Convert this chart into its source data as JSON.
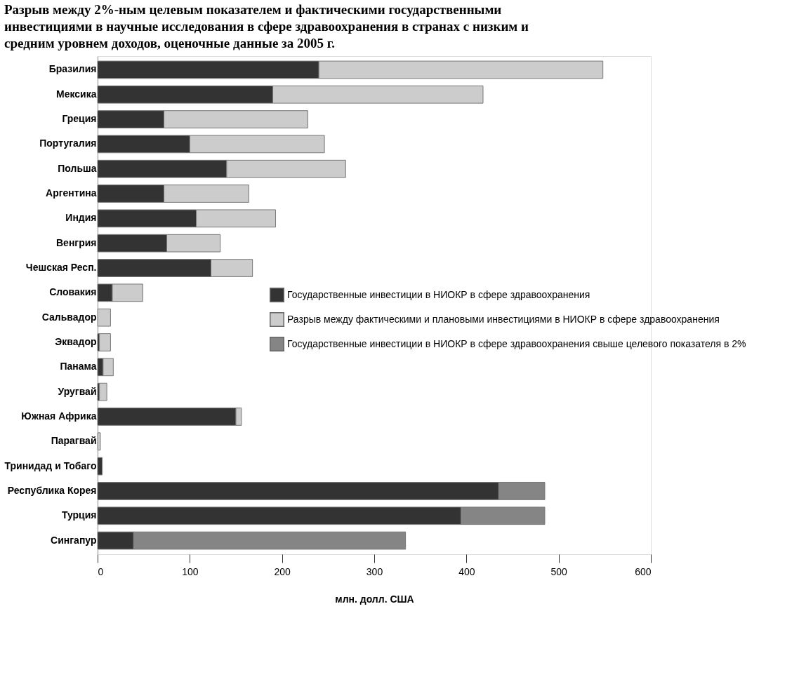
{
  "chart_data": {
    "type": "bar",
    "orientation": "horizontal",
    "stacked": true,
    "title": "Разрыв между 2%-ным целевым показателем и фактическими государственными инвестициями в научные исследования в сфере здравоохранения в странах с низким и средним уровнем доходов, оценочные данные за 2005 г.",
    "xlabel": "млн. долл. США",
    "categories": [
      "Бразилия",
      "Мексика",
      "Греция",
      "Португалия",
      "Польша",
      "Аргентина",
      "Индия",
      "Венгрия",
      "Чешская Респ.",
      "Словакия",
      "Сальвадор",
      "Эквадор",
      "Панама",
      "Уругвай",
      "Южная Африка",
      "Парагвай",
      "Тринидад и Тобаго",
      "Республика Корея",
      "Турция",
      "Сингапур"
    ],
    "series": [
      {
        "name": "Государственные инвестиции в НИОКР в сфере здравоохранения",
        "color": "#333333",
        "values": [
          240,
          190,
          72,
          100,
          140,
          72,
          107,
          75,
          123,
          16,
          null,
          2,
          6,
          2,
          150,
          null,
          5,
          435,
          394,
          39
        ]
      },
      {
        "name": "Разрыв между фактическими и плановыми инвестициями в НИОКР в сфере здравоохранения",
        "color": "#cccccc",
        "values": [
          308,
          228,
          156,
          146,
          129,
          92,
          86,
          58,
          45,
          33,
          14,
          12,
          11,
          8,
          6,
          3,
          null,
          null,
          null,
          null
        ]
      },
      {
        "name": "Государственные инвестиции в НИОКР в сфере здравоохранения свыше целевого показателя в 2%",
        "color": "#858585",
        "values": [
          null,
          null,
          null,
          null,
          null,
          null,
          null,
          null,
          null,
          null,
          null,
          null,
          null,
          null,
          null,
          null,
          null,
          50,
          91,
          295
        ]
      }
    ],
    "xlim": [
      0,
      600
    ],
    "xticks": [
      0,
      100,
      200,
      300,
      400,
      500,
      600
    ],
    "grid": false,
    "legend": "right"
  }
}
